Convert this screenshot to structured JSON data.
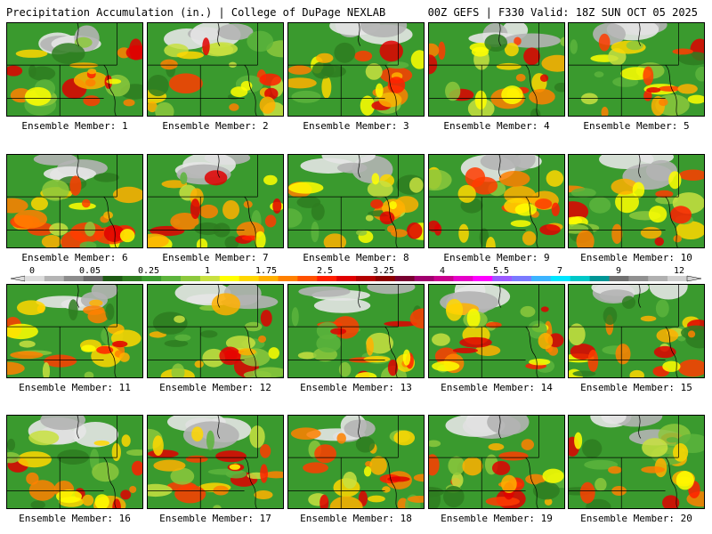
{
  "header": {
    "title": "Precipitation Accumulation (in.) | College of DuPage NEXLAB",
    "valid": "00Z GEFS | F330 Valid: 18Z SUN OCT 05 2025"
  },
  "colorbar": {
    "tick_labels": [
      "0",
      "0.05",
      "0.25",
      "1",
      "1.75",
      "2.5",
      "3.25",
      "4",
      "5.5",
      "7",
      "9",
      "12"
    ],
    "colors": [
      "#dcdcdc",
      "#b4b4b4",
      "#8c8c8c",
      "#6a6a6a",
      "#1e5a14",
      "#2e7d20",
      "#3a9a2e",
      "#5cb43c",
      "#8cc83c",
      "#c8e040",
      "#ffff00",
      "#ffd700",
      "#ffb000",
      "#ff8000",
      "#ff5000",
      "#ff1e00",
      "#e00000",
      "#b40000",
      "#8c0000",
      "#780030",
      "#a0006e",
      "#c8008c",
      "#e600c8",
      "#ff00ff",
      "#9b59ff",
      "#7a7aff",
      "#3cb4ff",
      "#00e6ff",
      "#00c8c8",
      "#009696",
      "#707070",
      "#909090",
      "#b0b0b0",
      "#d0d0d0"
    ]
  },
  "members": [
    {
      "label": "Ensemble Member: 1"
    },
    {
      "label": "Ensemble Member: 2"
    },
    {
      "label": "Ensemble Member: 3"
    },
    {
      "label": "Ensemble Member: 4"
    },
    {
      "label": "Ensemble Member: 5"
    },
    {
      "label": "Ensemble Member: 6"
    },
    {
      "label": "Ensemble Member: 7"
    },
    {
      "label": "Ensemble Member: 8"
    },
    {
      "label": "Ensemble Member: 9"
    },
    {
      "label": "Ensemble Member: 10"
    },
    {
      "label": "Ensemble Member: 11"
    },
    {
      "label": "Ensemble Member: 12"
    },
    {
      "label": "Ensemble Member: 13"
    },
    {
      "label": "Ensemble Member: 14"
    },
    {
      "label": "Ensemble Member: 15"
    },
    {
      "label": "Ensemble Member: 16"
    },
    {
      "label": "Ensemble Member: 17"
    },
    {
      "label": "Ensemble Member: 18"
    },
    {
      "label": "Ensemble Member: 19"
    },
    {
      "label": "Ensemble Member: 20"
    }
  ]
}
